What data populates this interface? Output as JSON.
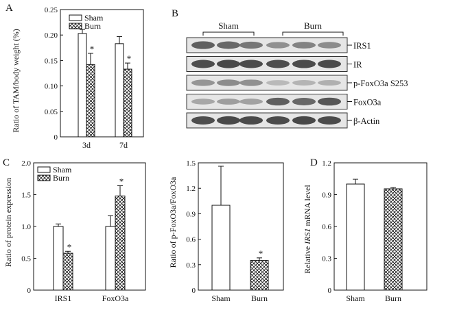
{
  "panel_letters": [
    "A",
    "B",
    "C",
    "D"
  ],
  "chart_data": [
    {
      "panel": "A",
      "type": "bar",
      "ylabel": "Ratio of TAM/body weight (%)",
      "categories": [
        "3d",
        "7d"
      ],
      "ylim": [
        0,
        0.25
      ],
      "yticks": [
        "0",
        "0.05",
        "0.10",
        "0.15",
        "0.20",
        "0.25"
      ],
      "series": [
        {
          "name": "Sham",
          "values": [
            0.203,
            0.183
          ],
          "errors": [
            0.008,
            0.014
          ],
          "stars": [
            false,
            false
          ]
        },
        {
          "name": "Burn",
          "values": [
            0.142,
            0.133
          ],
          "errors": [
            0.022,
            0.012
          ],
          "stars": [
            true,
            true
          ]
        }
      ],
      "legend_position": "top-left"
    },
    {
      "panel": "C1",
      "type": "bar",
      "ylabel": "Ratio of protein expression",
      "categories": [
        "IRS1",
        "FoxO3a"
      ],
      "ylim": [
        0,
        2.0
      ],
      "yticks": [
        "0",
        "0.5",
        "1.0",
        "1.5",
        "2.0"
      ],
      "series": [
        {
          "name": "Sham",
          "values": [
            1.0,
            1.0
          ],
          "errors": [
            0.04,
            0.17
          ],
          "stars": [
            false,
            false
          ]
        },
        {
          "name": "Burn",
          "values": [
            0.58,
            1.48
          ],
          "errors": [
            0.03,
            0.16
          ],
          "stars": [
            true,
            true
          ]
        }
      ],
      "legend_position": "top-left"
    },
    {
      "panel": "C2",
      "type": "bar",
      "ylabel": "Ratio of p-FoxO3a/FoxO3a",
      "categories": [
        "Sham",
        "Burn"
      ],
      "ylim": [
        0,
        1.5
      ],
      "yticks": [
        "0",
        "0.3",
        "0.6",
        "0.9",
        "1.2",
        "1.5"
      ],
      "values": [
        1.0,
        0.35
      ],
      "errors": [
        0.46,
        0.03
      ],
      "stars": [
        false,
        true
      ],
      "patterns": [
        "white",
        "crosshatch"
      ]
    },
    {
      "panel": "D",
      "type": "bar",
      "ylabel_parts": [
        "Relative ",
        "IRS1",
        " mRNA level"
      ],
      "categories": [
        "Sham",
        "Burn"
      ],
      "ylim": [
        0,
        1.2
      ],
      "yticks": [
        "0",
        "0.3",
        "0.6",
        "0.9",
        "1.2"
      ],
      "values": [
        1.0,
        0.955
      ],
      "errors": [
        0.045,
        0.012
      ],
      "stars": [
        false,
        false
      ],
      "patterns": [
        "white",
        "crosshatch"
      ]
    }
  ],
  "blot": {
    "group_labels": [
      "Sham",
      "Burn"
    ],
    "rows": [
      {
        "label": "IRS1",
        "intensities": [
          0.75,
          0.7,
          0.62,
          0.48,
          0.55,
          0.5
        ]
      },
      {
        "label": "IR",
        "intensities": [
          0.85,
          0.88,
          0.86,
          0.85,
          0.87,
          0.86
        ]
      },
      {
        "label": "p-FoxO3a S253",
        "intensities": [
          0.45,
          0.5,
          0.48,
          0.25,
          0.28,
          0.3
        ]
      },
      {
        "label": "FoxO3a",
        "intensities": [
          0.35,
          0.4,
          0.38,
          0.75,
          0.7,
          0.8
        ]
      },
      {
        "label": "β-Actin",
        "intensities": [
          0.85,
          0.88,
          0.87,
          0.86,
          0.88,
          0.86
        ]
      }
    ]
  }
}
